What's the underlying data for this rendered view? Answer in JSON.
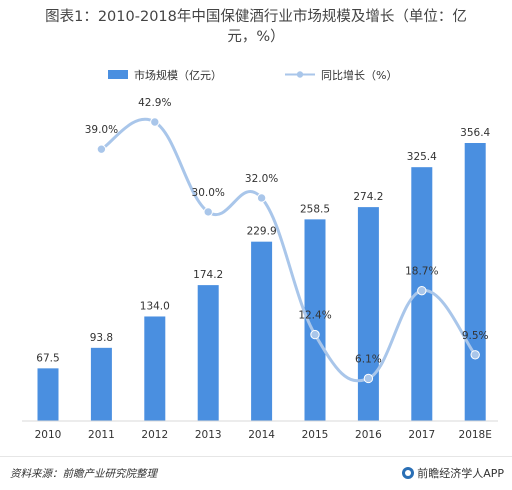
{
  "header": {
    "title_line1": "图表1：2010-2018年中国保健酒行业市场规模及增长（单位：亿",
    "title_line2": "元，%）"
  },
  "chart_data": {
    "type": "bar",
    "categories": [
      "2010",
      "2011",
      "2012",
      "2013",
      "2014",
      "2015",
      "2016",
      "2017",
      "2018E"
    ],
    "series": [
      {
        "name": "市场规模（亿元）",
        "kind": "bar",
        "color": "#4a8fe0",
        "values": [
          67.5,
          93.8,
          134.0,
          174.2,
          229.9,
          258.5,
          274.2,
          325.4,
          356.4
        ],
        "labels": [
          "67.5",
          "93.8",
          "134.0",
          "174.2",
          "229.9",
          "258.5",
          "274.2",
          "325.4",
          "356.4"
        ]
      },
      {
        "name": "同比增长（%）",
        "kind": "line",
        "color": "#a9c6ea",
        "values": [
          null,
          39.0,
          42.9,
          30.0,
          32.0,
          12.4,
          6.1,
          18.7,
          9.5
        ],
        "labels": [
          "",
          "39.0%",
          "42.9%",
          "30.0%",
          "32.0%",
          "12.4%",
          "6.1%",
          "18.7%",
          "9.5%"
        ]
      }
    ],
    "y_bar_range": [
      0,
      380
    ],
    "y_line_range": [
      0,
      60
    ],
    "legend_position": "top-center",
    "grid": false
  },
  "footer": {
    "source": "资料来源：前瞻产业研究院整理",
    "brand": "前瞻经济学人APP"
  }
}
